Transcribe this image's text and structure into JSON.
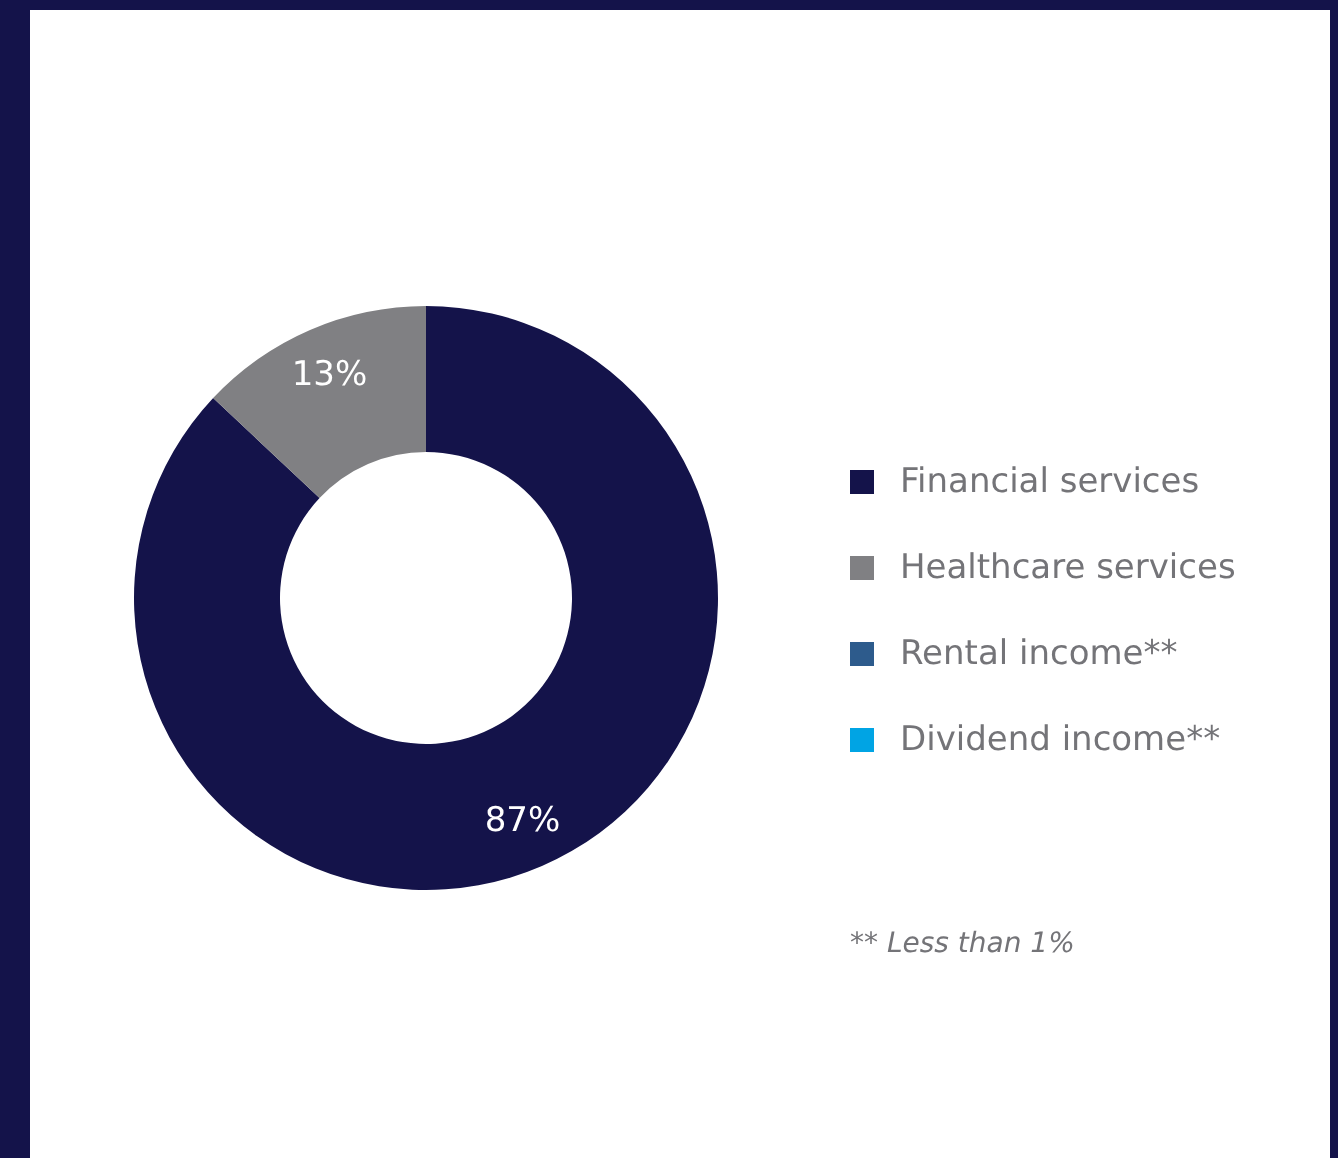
{
  "chart_data": {
    "type": "donut",
    "categories": [
      "Financial services",
      "Healthcare services",
      "Rental income**",
      "Dividend income**"
    ],
    "values": [
      87,
      13,
      0,
      0
    ],
    "colors": [
      "#14134a",
      "#808083",
      "#2d5b8c",
      "#00a4e4"
    ],
    "value_labels": [
      "87%",
      "13%",
      null,
      null
    ],
    "legend": "right",
    "annotations": [
      "** Less than 1%"
    ]
  }
}
